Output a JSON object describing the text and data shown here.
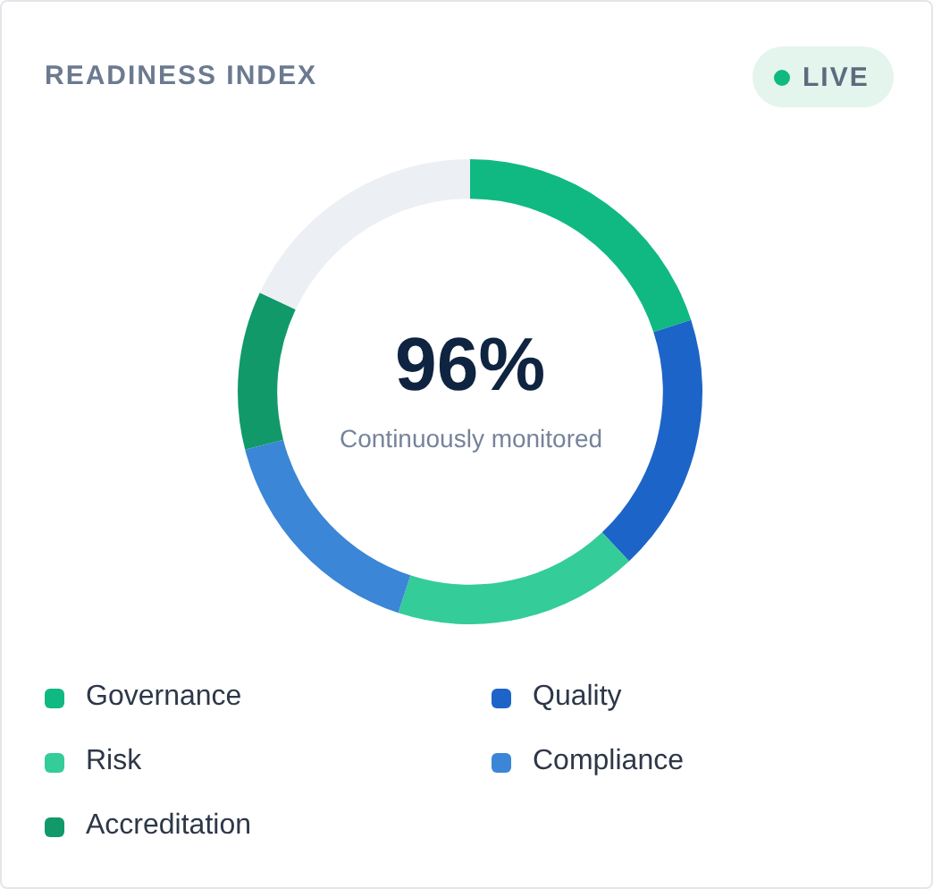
{
  "chart_data": {
    "type": "donut",
    "title": "READINESS INDEX",
    "categories": [
      "Governance",
      "Quality",
      "Risk",
      "Compliance",
      "Accreditation",
      null
    ],
    "values": [
      20,
      18,
      17,
      16,
      11,
      18
    ],
    "colors": [
      "#10b981",
      "#1d64c8",
      "#34cc98",
      "#3b86d6",
      "#11996a",
      "#eceff3"
    ],
    "annotations": [
      "96%",
      "Continuously monitored",
      "LIVE"
    ],
    "legend": "bottom"
  }
}
